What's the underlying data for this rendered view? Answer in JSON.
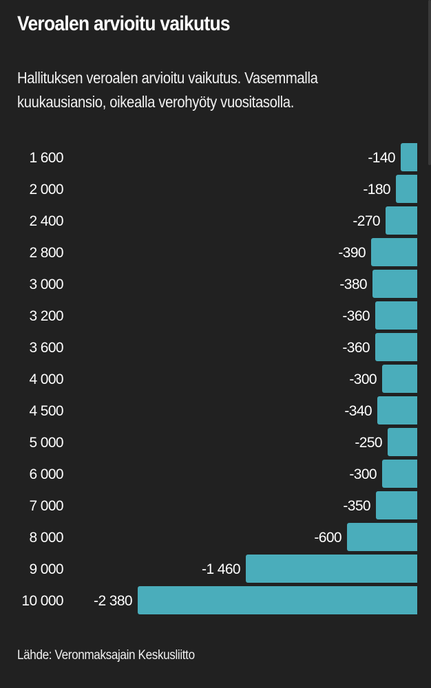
{
  "header": {
    "title": "Veroalen arvioitu vaikutus",
    "subtitle": "Hallituksen veroalen arvioitu vaikutus. Vasemmalla kuukausiansio, oikealla verohyöty vuositasolla."
  },
  "footer": {
    "source": "Lähde: Veronmaksajain Keskusliitto"
  },
  "colors": {
    "background": "#212121",
    "bar": "#4aadbb",
    "text": "#ffffff"
  },
  "chart_data": {
    "type": "bar",
    "orientation": "horizontal",
    "title": "Veroalen arvioitu vaikutus",
    "subtitle": "Hallituksen veroalen arvioitu vaikutus. Vasemmalla kuukausiansio, oikealla verohyöty vuositasolla.",
    "xlabel": "",
    "ylabel": "",
    "categories": [
      "1 600",
      "2 000",
      "2 400",
      "2 800",
      "3 000",
      "3 200",
      "3 600",
      "4 000",
      "4 500",
      "5 000",
      "6 000",
      "7 000",
      "8 000",
      "9 000",
      "10 000"
    ],
    "values": [
      -140,
      -180,
      -270,
      -390,
      -380,
      -360,
      -360,
      -300,
      -340,
      -250,
      -300,
      -350,
      -600,
      -1460,
      -2380
    ],
    "value_labels": [
      "-140",
      "-180",
      "-270",
      "-390",
      "-380",
      "-360",
      "-360",
      "-300",
      "-340",
      "-250",
      "-300",
      "-350",
      "-600",
      "-1 460",
      "-2 380"
    ],
    "xlim": [
      -2380,
      0
    ],
    "grid": false,
    "legend": "none",
    "source": "Lähde: Veronmaksajain Keskusliitto"
  }
}
